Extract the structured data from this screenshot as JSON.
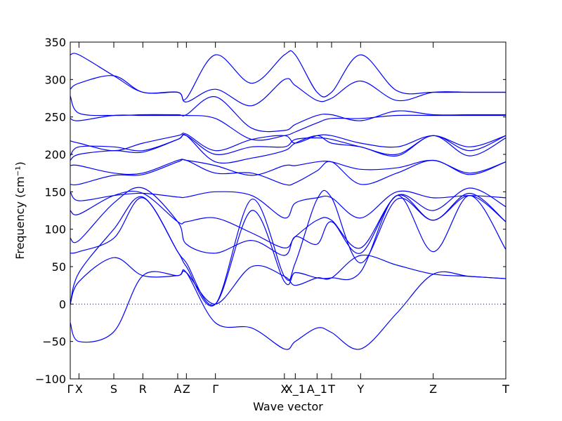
{
  "chart_data": {
    "type": "line",
    "title": "",
    "xlabel": "Wave vector",
    "ylabel": "Frequency (cm⁻¹)",
    "ylim": [
      -100,
      350
    ],
    "yticks": [
      -100,
      -50,
      0,
      50,
      100,
      150,
      200,
      250,
      300,
      350
    ],
    "xlim": [
      0,
      6
    ],
    "xticks": [
      {
        "x": 0.0,
        "label": "Γ"
      },
      {
        "x": 0.12,
        "label": "X"
      },
      {
        "x": 0.6,
        "label": "S"
      },
      {
        "x": 1.0,
        "label": "R"
      },
      {
        "x": 1.48,
        "label": "A"
      },
      {
        "x": 1.6,
        "label": "Z"
      },
      {
        "x": 2.0,
        "label": "Γ"
      },
      {
        "x": 2.95,
        "label": "X"
      },
      {
        "x": 3.1,
        "label": "X_1"
      },
      {
        "x": 3.4,
        "label": "A_1"
      },
      {
        "x": 3.6,
        "label": "T"
      },
      {
        "x": 4.0,
        "label": "Y"
      },
      {
        "x": 5.0,
        "label": "Z"
      },
      {
        "x": 6.0,
        "label": "T"
      }
    ],
    "grid": false,
    "legend": "none",
    "zero_line": {
      "y": 0,
      "style": "dotted"
    },
    "line_color": "#0000ff",
    "series": [
      {
        "x": [
          0,
          0.12,
          0.6,
          1.0,
          1.48,
          1.6,
          2.0,
          2.5,
          2.95,
          3.1,
          3.4,
          3.6,
          4.0,
          4.5,
          5.0,
          5.5,
          6.0
        ],
        "values": [
          -25,
          -50,
          -37,
          38,
          38,
          42,
          -25,
          -32,
          -60,
          -50,
          -32,
          -38,
          -60,
          -12,
          40,
          37,
          34
        ]
      },
      {
        "x": [
          0,
          0.12,
          0.6,
          1.0,
          1.48,
          1.6,
          2.0,
          2.5,
          2.95,
          3.1,
          3.4,
          3.6,
          4.0,
          4.5,
          5.0,
          5.5,
          6.0
        ],
        "values": [
          0,
          30,
          62,
          38,
          38,
          42,
          0,
          50,
          37,
          25,
          35,
          35,
          65,
          52,
          40,
          37,
          34
        ]
      },
      {
        "x": [
          0,
          0.12,
          0.6,
          1.0,
          1.48,
          1.6,
          2.0,
          2.5,
          2.95,
          3.1,
          3.4,
          3.6,
          4.0,
          4.5,
          5.0,
          5.5,
          6.0
        ],
        "values": [
          0,
          42,
          100,
          143,
          70,
          55,
          0,
          125,
          30,
          42,
          35,
          35,
          43,
          145,
          70,
          145,
          73
        ]
      },
      {
        "x": [
          0,
          0.12,
          0.6,
          1.0,
          1.48,
          1.6,
          2.0,
          2.5,
          2.95,
          3.1,
          3.4,
          3.6,
          4.0,
          4.5,
          5.0,
          5.5,
          6.0
        ],
        "values": [
          68,
          70,
          88,
          142,
          70,
          50,
          0,
          140,
          37,
          55,
          140,
          142,
          55,
          140,
          112,
          145,
          110
        ]
      },
      {
        "x": [
          0,
          0.12,
          0.6,
          1.0,
          1.48,
          1.6,
          2.0,
          2.5,
          2.95,
          3.1,
          3.4,
          3.6,
          4.0,
          4.5,
          5.0,
          5.5,
          6.0
        ],
        "values": [
          88,
          85,
          135,
          155,
          110,
          80,
          68,
          85,
          65,
          90,
          80,
          110,
          68,
          145,
          112,
          148,
          110
        ]
      },
      {
        "x": [
          0,
          0.12,
          0.6,
          1.0,
          1.48,
          1.6,
          2.0,
          2.5,
          2.95,
          3.1,
          3.4,
          3.6,
          4.0,
          4.5,
          5.0,
          5.5,
          6.0
        ],
        "values": [
          125,
          120,
          145,
          148,
          110,
          110,
          115,
          95,
          75,
          90,
          112,
          112,
          75,
          145,
          125,
          155,
          130
        ]
      },
      {
        "x": [
          0,
          0.12,
          0.6,
          1.0,
          1.48,
          1.6,
          2.0,
          2.5,
          2.95,
          3.1,
          3.4,
          3.6,
          4.0,
          4.5,
          5.0,
          5.5,
          6.0
        ],
        "values": [
          150,
          138,
          145,
          148,
          143,
          143,
          150,
          145,
          115,
          135,
          142,
          142,
          115,
          150,
          142,
          145,
          142
        ]
      },
      {
        "x": [
          0,
          0.12,
          0.6,
          1.0,
          1.48,
          1.6,
          2.0,
          2.5,
          2.95,
          3.1,
          3.4,
          3.6,
          4.0,
          4.5,
          5.0,
          5.5,
          6.0
        ],
        "values": [
          160,
          160,
          172,
          173,
          190,
          192,
          175,
          175,
          160,
          162,
          178,
          190,
          160,
          175,
          192,
          173,
          190
        ]
      },
      {
        "x": [
          0,
          0.12,
          0.6,
          1.0,
          1.48,
          1.6,
          2.0,
          2.5,
          2.95,
          3.1,
          3.4,
          3.6,
          4.0,
          4.5,
          5.0,
          5.5,
          6.0
        ],
        "values": [
          185,
          185,
          175,
          175,
          192,
          192,
          185,
          172,
          185,
          185,
          190,
          190,
          180,
          182,
          192,
          175,
          190
        ]
      },
      {
        "x": [
          0,
          0.12,
          0.6,
          1.0,
          1.48,
          1.6,
          2.0,
          2.5,
          2.95,
          3.1,
          3.4,
          3.6,
          4.0,
          4.5,
          5.0,
          5.5,
          6.0
        ],
        "values": [
          192,
          200,
          205,
          203,
          220,
          225,
          190,
          195,
          205,
          215,
          225,
          215,
          210,
          198,
          225,
          198,
          222
        ]
      },
      {
        "x": [
          0,
          0.12,
          0.6,
          1.0,
          1.48,
          1.6,
          2.0,
          2.5,
          2.95,
          3.1,
          3.4,
          3.6,
          4.0,
          4.5,
          5.0,
          5.5,
          6.0
        ],
        "values": [
          198,
          210,
          210,
          205,
          220,
          225,
          200,
          210,
          210,
          220,
          222,
          220,
          210,
          200,
          225,
          205,
          225
        ]
      },
      {
        "x": [
          0,
          0.12,
          0.6,
          1.0,
          1.48,
          1.6,
          2.0,
          2.5,
          2.95,
          3.1,
          3.4,
          3.6,
          4.0,
          4.5,
          5.0,
          5.5,
          6.0
        ],
        "values": [
          218,
          215,
          205,
          215,
          225,
          227,
          205,
          220,
          225,
          215,
          225,
          225,
          215,
          210,
          225,
          210,
          225
        ]
      },
      {
        "x": [
          0,
          0.12,
          0.6,
          1.0,
          1.48,
          1.6,
          2.0,
          2.5,
          2.95,
          3.1,
          3.4,
          3.6,
          4.0,
          4.5,
          5.0,
          5.5,
          6.0
        ],
        "values": [
          248,
          245,
          252,
          252,
          252,
          252,
          248,
          220,
          225,
          230,
          242,
          248,
          248,
          252,
          252,
          252,
          252
        ]
      },
      {
        "x": [
          0,
          0.12,
          0.6,
          1.0,
          1.48,
          1.6,
          2.0,
          2.5,
          2.95,
          3.1,
          3.4,
          3.6,
          4.0,
          4.5,
          5.0,
          5.5,
          6.0
        ],
        "values": [
          278,
          255,
          252,
          253,
          253,
          253,
          277,
          235,
          232,
          240,
          252,
          253,
          245,
          258,
          253,
          253,
          253
        ]
      },
      {
        "x": [
          0,
          0.12,
          0.6,
          1.0,
          1.48,
          1.6,
          2.0,
          2.5,
          2.95,
          3.1,
          3.4,
          3.6,
          4.0,
          4.5,
          5.0,
          5.5,
          6.0
        ],
        "values": [
          287,
          295,
          305,
          283,
          283,
          270,
          287,
          265,
          300,
          292,
          272,
          275,
          298,
          272,
          283,
          283,
          283
        ]
      },
      {
        "x": [
          0,
          0.12,
          0.6,
          1.0,
          1.48,
          1.6,
          2.0,
          2.5,
          2.95,
          3.1,
          3.4,
          3.6,
          4.0,
          4.5,
          5.0,
          5.5,
          6.0
        ],
        "values": [
          333,
          333,
          305,
          283,
          283,
          275,
          333,
          295,
          333,
          333,
          283,
          283,
          333,
          285,
          283,
          283,
          283
        ]
      }
    ]
  }
}
